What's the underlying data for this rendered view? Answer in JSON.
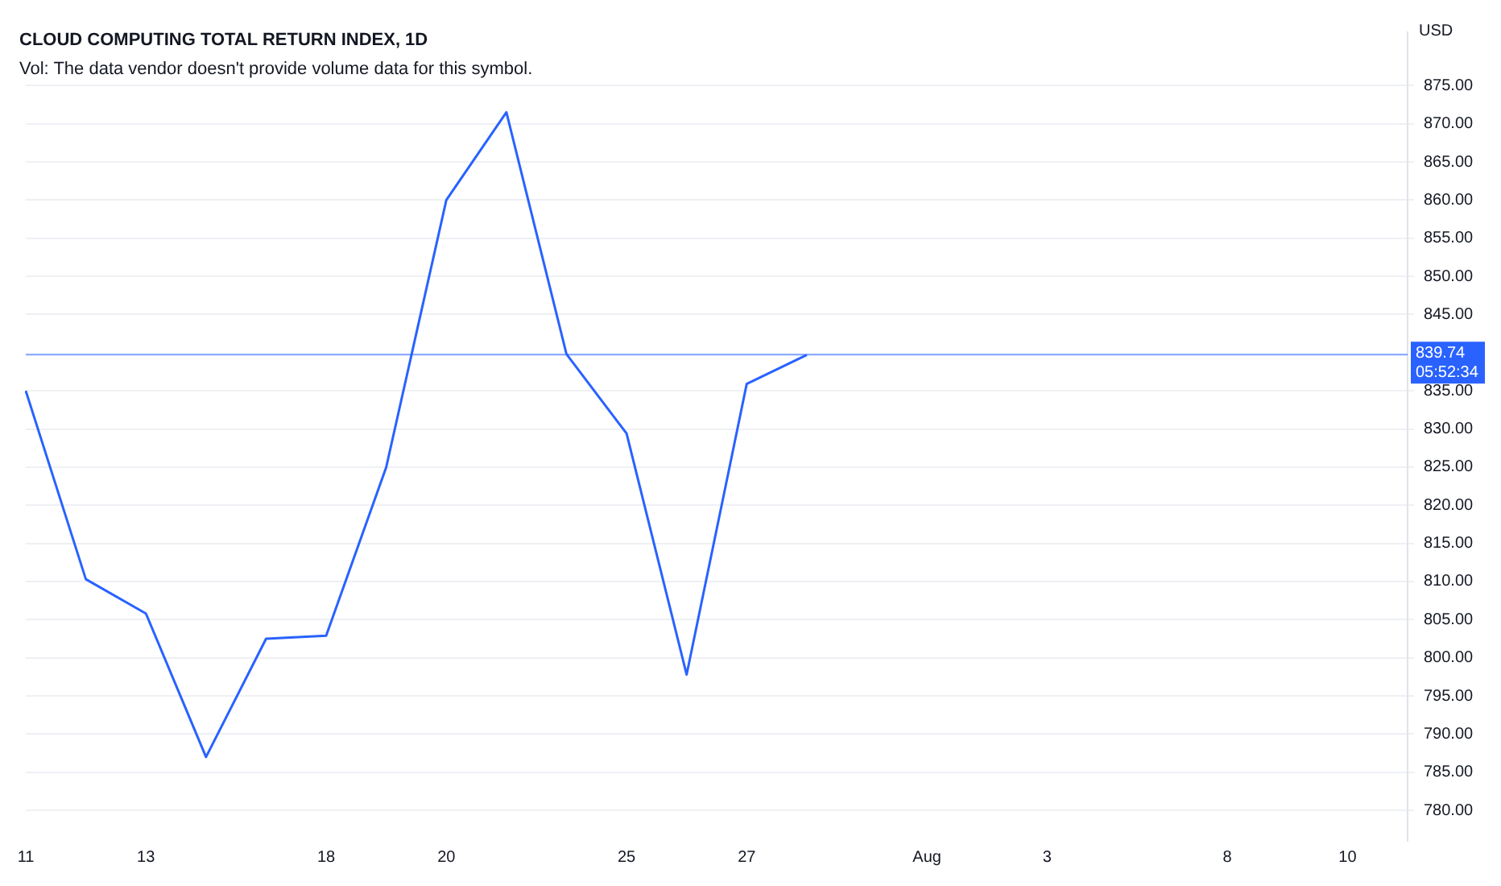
{
  "chart_data": {
    "type": "line",
    "title": "CLOUD COMPUTING TOTAL RETURN INDEX, 1D",
    "subtitle": "Vol: The data vendor doesn't provide volume data for this symbol.",
    "ylabel": "USD",
    "categories": [
      "11",
      null,
      "13",
      null,
      null,
      "18",
      null,
      "20",
      null,
      null,
      "25",
      null,
      "27",
      null,
      null,
      "Aug",
      null,
      "3",
      null,
      null,
      "8",
      null,
      "10",
      null
    ],
    "series": [
      {
        "color": "#2962ff",
        "values": [
          835,
          810.3,
          805.8,
          787,
          802.5,
          802.9,
          825,
          860,
          871.5,
          839.8,
          829.4,
          797.8,
          835.9,
          839.7,
          null,
          null,
          null,
          null,
          null,
          null,
          null,
          null,
          null,
          null
        ]
      }
    ],
    "ylim": [
      776,
      882
    ],
    "yticks": [
      {
        "value": 780,
        "label": "780.00"
      },
      {
        "value": 785,
        "label": "785.00"
      },
      {
        "value": 790,
        "label": "790.00"
      },
      {
        "value": 795,
        "label": "795.00"
      },
      {
        "value": 800,
        "label": "800.00"
      },
      {
        "value": 805,
        "label": "805.00"
      },
      {
        "value": 810,
        "label": "810.00"
      },
      {
        "value": 815,
        "label": "815.00"
      },
      {
        "value": 820,
        "label": "820.00"
      },
      {
        "value": 825,
        "label": "825.00"
      },
      {
        "value": 830,
        "label": "830.00"
      },
      {
        "value": 835,
        "label": "835.00"
      },
      {
        "value": 845,
        "label": "845.00"
      },
      {
        "value": 850,
        "label": "850.00"
      },
      {
        "value": 855,
        "label": "855.00"
      },
      {
        "value": 860,
        "label": "860.00"
      },
      {
        "value": 865,
        "label": "865.00"
      },
      {
        "value": 870,
        "label": "870.00"
      },
      {
        "value": 875,
        "label": "875.00"
      }
    ],
    "ref_lines": [
      {
        "axis": "y",
        "value": 839.74,
        "label": "839.74",
        "color": "#2962ff"
      }
    ],
    "annotations": [
      "05:52:34"
    ],
    "grid": "y",
    "legend": false,
    "marker": "none",
    "line_style": "solid"
  }
}
